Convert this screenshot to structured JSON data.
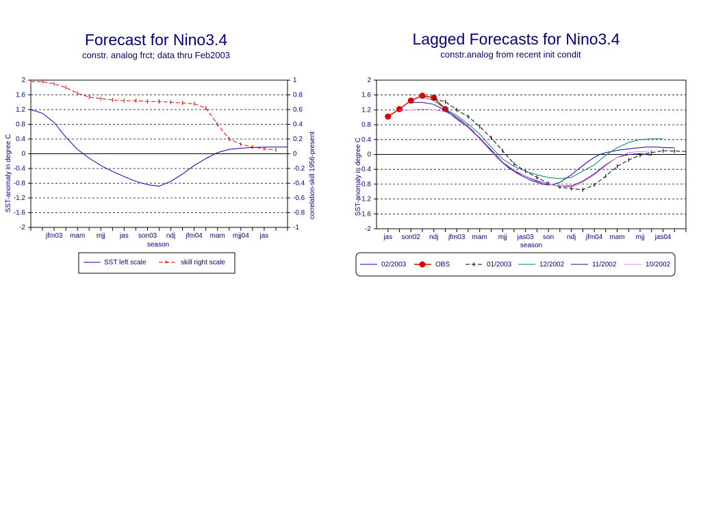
{
  "chart_data": [
    {
      "type": "line",
      "title": "Forecast for Nino3.4",
      "subtitle": "constr. analog frct; data thru Feb2003",
      "xlabel": "season",
      "ylabel": "SST-anomaly in degree C",
      "y2label": "correlation-skill 1956-present",
      "ylim": [
        -2,
        2
      ],
      "y2lim": [
        -1,
        1
      ],
      "yticks": [
        "2",
        "1.6",
        "1.2",
        "0.8",
        "0.4",
        "0",
        "-0.4",
        "-0.8",
        "-1.2",
        "-1.6",
        "-2"
      ],
      "y2ticks": [
        "1",
        "0.8",
        "0.6",
        "0.4",
        "0.2",
        "0",
        "-0.2",
        "-0.4",
        "-0.6",
        "-0.8",
        "-1"
      ],
      "categories": [
        "jfm03",
        "mam",
        "mjj",
        "jas",
        "son03",
        "ndj",
        "jfm04",
        "mam",
        "mjj04",
        "jas"
      ],
      "legend": "bottom",
      "series": [
        {
          "name": "SST left scale",
          "axis": "left",
          "color": "#0000c0",
          "x": [
            0,
            0.5,
            1,
            1.5,
            2,
            2.5,
            3,
            3.5,
            4,
            4.5,
            5,
            5.5,
            6,
            6.5,
            7,
            7.5,
            8,
            8.5,
            9,
            9.5,
            10,
            10.5,
            11
          ],
          "values": [
            1.2,
            1.1,
            0.85,
            0.45,
            0.12,
            -0.12,
            -0.32,
            -0.48,
            -0.62,
            -0.75,
            -0.84,
            -0.88,
            -0.75,
            -0.55,
            -0.32,
            -0.13,
            0.03,
            0.12,
            0.15,
            0.17,
            0.18,
            0.18,
            0.18
          ]
        },
        {
          "name": "skill right scale",
          "axis": "right",
          "color": "#e00000",
          "x": [
            0,
            1,
            2,
            3,
            4,
            5,
            6,
            7,
            8,
            9,
            10,
            11,
            12,
            13,
            14,
            15,
            16,
            17,
            18,
            19,
            20,
            21
          ],
          "values": [
            0.98,
            0.98,
            0.95,
            0.9,
            0.82,
            0.77,
            0.75,
            0.73,
            0.72,
            0.72,
            0.71,
            0.71,
            0.7,
            0.69,
            0.68,
            0.62,
            0.4,
            0.2,
            0.13,
            0.09,
            0.07,
            0.05
          ]
        }
      ]
    },
    {
      "type": "line",
      "title": "Lagged Forecasts for Nino3.4",
      "subtitle": "constr.analog from recent init condit",
      "xlabel": "season",
      "ylabel": "SST-anomaly in degree C",
      "ylim": [
        -2,
        2
      ],
      "yticks": [
        "2",
        "1.6",
        "1.2",
        "0.8",
        "0.4",
        "0",
        "-0.4",
        "-0.8",
        "-1.2",
        "-1.6",
        "-2"
      ],
      "categories": [
        "jas",
        "son02",
        "ndj",
        "jfm03",
        "mam",
        "mjj",
        "jas03",
        "son",
        "ndj",
        "jfm04",
        "mam",
        "mjj",
        "jas04"
      ],
      "legend": "bottom",
      "series": [
        {
          "name": "02/2003",
          "color": "#0000c0",
          "x": [
            5,
            5.5,
            6,
            6.5,
            7,
            7.5,
            8,
            8.5,
            9,
            9.5,
            10,
            10.5,
            11,
            11.5,
            12,
            12.5,
            13,
            13.5,
            14,
            14.5,
            15,
            15.5,
            16,
            16.5,
            17,
            17.5,
            18,
            18.5,
            19,
            19.5,
            20,
            20.5,
            21,
            21.5,
            22,
            22.5,
            23,
            23.5,
            24,
            24.5,
            25
          ],
          "values": [
            1.2,
            1.1,
            1.0,
            0.88,
            0.75,
            0.6,
            0.42,
            0.25,
            0.1,
            -0.08,
            -0.22,
            -0.35,
            -0.45,
            -0.55,
            -0.62,
            -0.7,
            -0.75,
            -0.8,
            -0.82,
            -0.8,
            -0.75,
            -0.65,
            -0.55,
            -0.42,
            -0.3,
            -0.18,
            -0.08,
            0,
            0.05,
            0.08,
            0.11,
            0.13,
            0.15,
            0.17,
            0.18,
            0.2,
            0.2,
            0.2,
            0.19,
            0.18,
            0.18
          ]
        },
        {
          "name": "OBS",
          "color": "#e00000",
          "x": [
            0,
            1,
            2,
            3,
            4,
            5
          ],
          "values": [
            1.02,
            1.22,
            1.45,
            1.58,
            1.53,
            1.22
          ]
        },
        {
          "name": "01/2003",
          "color": "#000000",
          "x": [
            4,
            5,
            6,
            7,
            8,
            9,
            10,
            11,
            12,
            13,
            14,
            15,
            16,
            17,
            18,
            19,
            20,
            21,
            22,
            23,
            24,
            25,
            26
          ],
          "values": [
            1.5,
            1.42,
            1.2,
            1.02,
            0.75,
            0.45,
            0.1,
            -0.25,
            -0.45,
            -0.62,
            -0.78,
            -0.88,
            -0.92,
            -0.95,
            -0.82,
            -0.58,
            -0.32,
            -0.15,
            -0.02,
            0.05,
            0.1,
            0.09,
            0.08
          ]
        },
        {
          "name": "12/2002",
          "color": "#008060",
          "x": [
            3,
            4,
            5,
            6,
            7,
            8,
            9,
            10,
            11,
            12,
            13,
            14,
            15,
            16,
            17,
            18,
            19,
            20,
            21,
            22,
            23,
            24
          ],
          "values": [
            1.55,
            1.45,
            1.22,
            1.05,
            0.82,
            0.55,
            0.2,
            -0.12,
            -0.32,
            -0.45,
            -0.55,
            -0.62,
            -0.65,
            -0.62,
            -0.45,
            -0.28,
            -0.02,
            0.18,
            0.32,
            0.4,
            0.42,
            0.42
          ]
        },
        {
          "name": "11/2002",
          "color": "#400080",
          "x": [
            2,
            3,
            4,
            5,
            6,
            7,
            8,
            9,
            10,
            11,
            12,
            13,
            14,
            15,
            16,
            17,
            18,
            19,
            20,
            21,
            22,
            23
          ],
          "values": [
            1.4,
            1.4,
            1.35,
            1.18,
            0.95,
            0.72,
            0.45,
            0.12,
            -0.2,
            -0.45,
            -0.58,
            -0.72,
            -0.8,
            -0.85,
            -0.85,
            -0.72,
            -0.52,
            -0.28,
            -0.08,
            0.0,
            0.02,
            -0.02
          ]
        },
        {
          "name": "10/2002",
          "color": "#e080e0",
          "x": [
            1,
            2,
            3,
            4,
            5,
            6,
            7,
            8,
            9,
            10,
            11,
            12,
            13,
            14,
            15,
            16,
            17,
            18,
            19,
            20,
            21,
            22,
            23
          ],
          "values": [
            1.18,
            1.2,
            1.22,
            1.2,
            1.15,
            0.98,
            0.72,
            0.42,
            0.08,
            -0.2,
            -0.42,
            -0.58,
            -0.7,
            -0.8,
            -0.85,
            -0.88,
            -0.75,
            -0.55,
            -0.3,
            -0.08,
            0.05,
            0.08,
            0.06
          ]
        }
      ]
    }
  ]
}
